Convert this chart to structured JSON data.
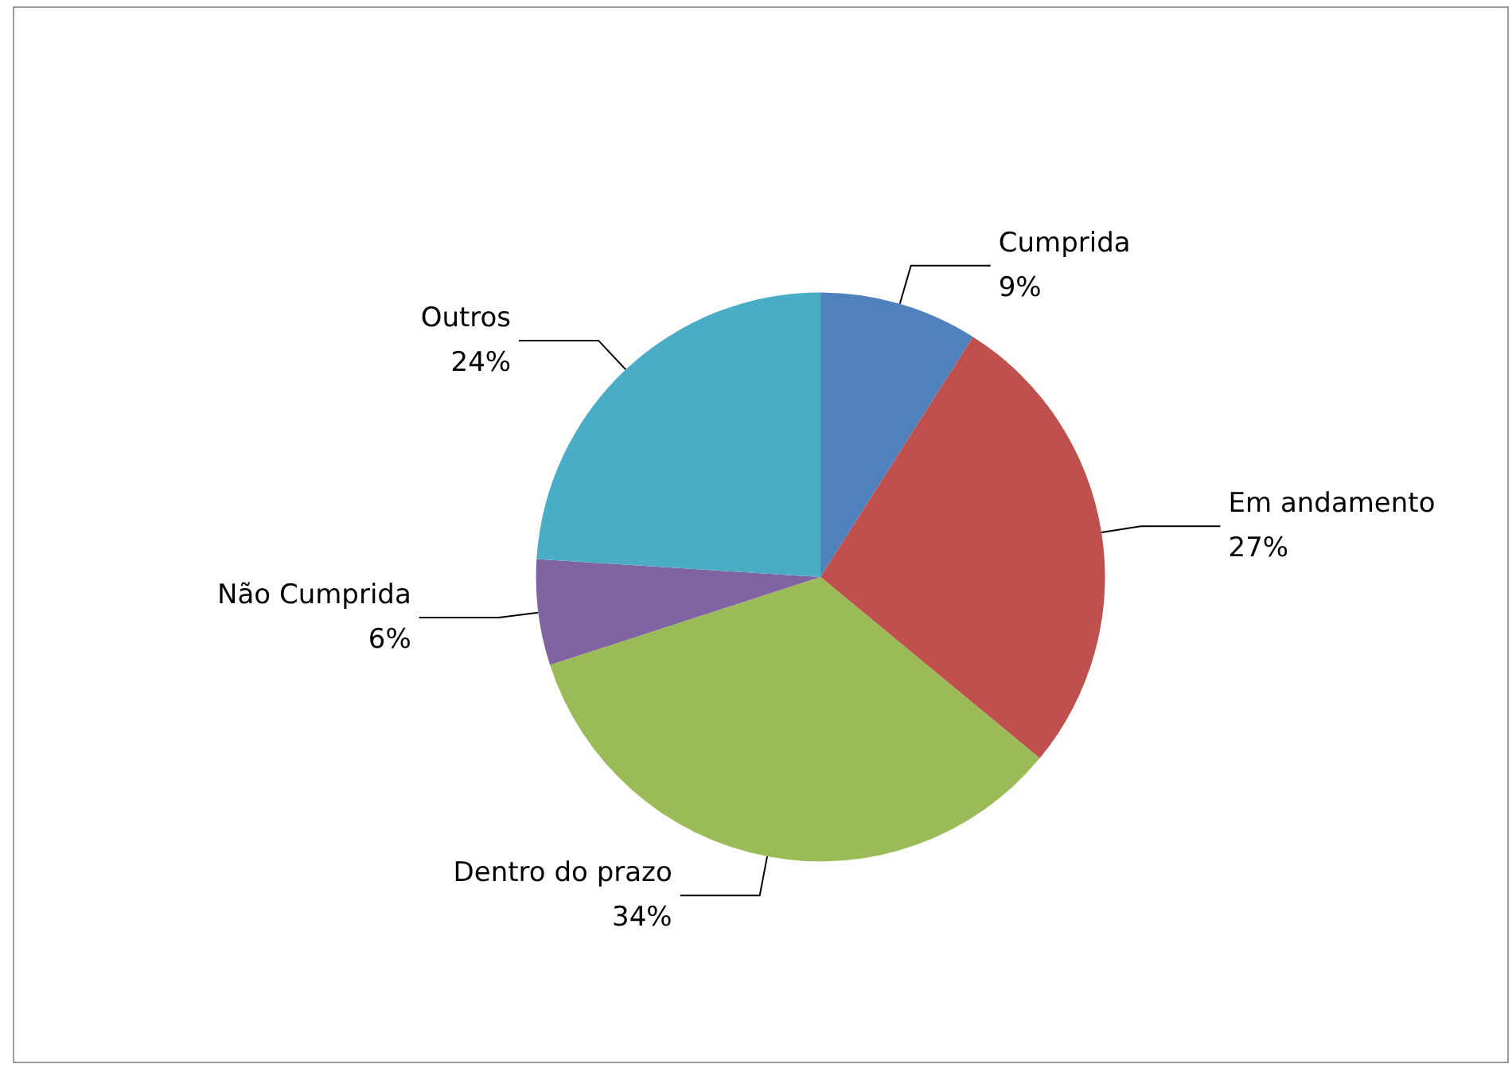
{
  "chart_data": {
    "type": "pie",
    "categories": [
      "Cumprida",
      "Em andamento",
      "Dentro do prazo",
      "Não Cumprida",
      "Outros"
    ],
    "values": [
      9,
      27,
      34,
      6,
      24
    ],
    "colors": [
      "#4f81bd",
      "#c0504d",
      "#9bbb59",
      "#8064a2",
      "#4bacc6"
    ],
    "value_labels": [
      "9%",
      "27%",
      "34%",
      "6%",
      "24%"
    ],
    "legend": false
  }
}
